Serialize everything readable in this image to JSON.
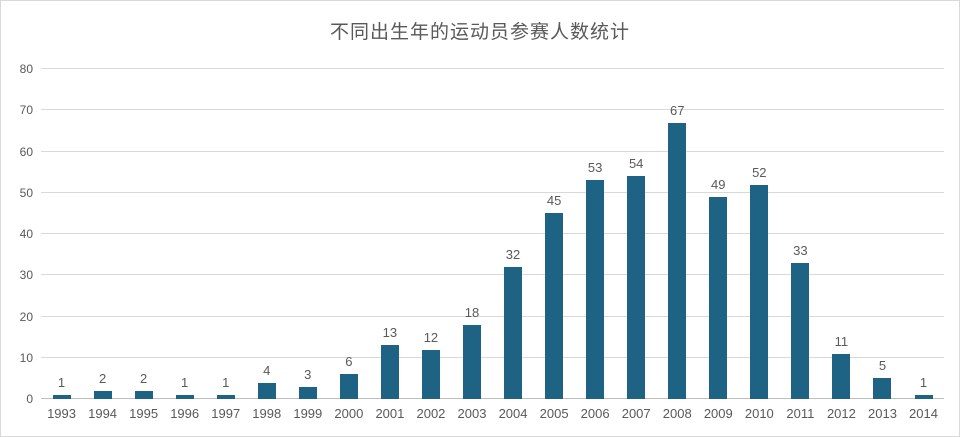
{
  "title": "不同出生年的运动员参赛人数统计",
  "colors": {
    "bar": "#1e6284",
    "text": "#595959",
    "gridline": "#d9d9d9",
    "axis_line": "#bfbfbf",
    "frame_border": "#d9d9d9",
    "background": "#ffffff"
  },
  "chart_data": {
    "type": "bar",
    "title": "不同出生年的运动员参赛人数统计",
    "categories": [
      "1993",
      "1994",
      "1995",
      "1996",
      "1997",
      "1998",
      "1999",
      "2000",
      "2001",
      "2002",
      "2003",
      "2004",
      "2005",
      "2006",
      "2007",
      "2008",
      "2009",
      "2010",
      "2011",
      "2012",
      "2013",
      "2014"
    ],
    "values": [
      1,
      2,
      2,
      1,
      1,
      4,
      3,
      6,
      13,
      12,
      18,
      32,
      45,
      53,
      54,
      67,
      49,
      52,
      33,
      11,
      5,
      1
    ],
    "xlabel": "",
    "ylabel": "",
    "ylim": [
      0,
      80
    ],
    "yticks": [
      0,
      10,
      20,
      30,
      40,
      50,
      60,
      70,
      80
    ],
    "grid": true,
    "data_labels": true,
    "legend": "none"
  }
}
